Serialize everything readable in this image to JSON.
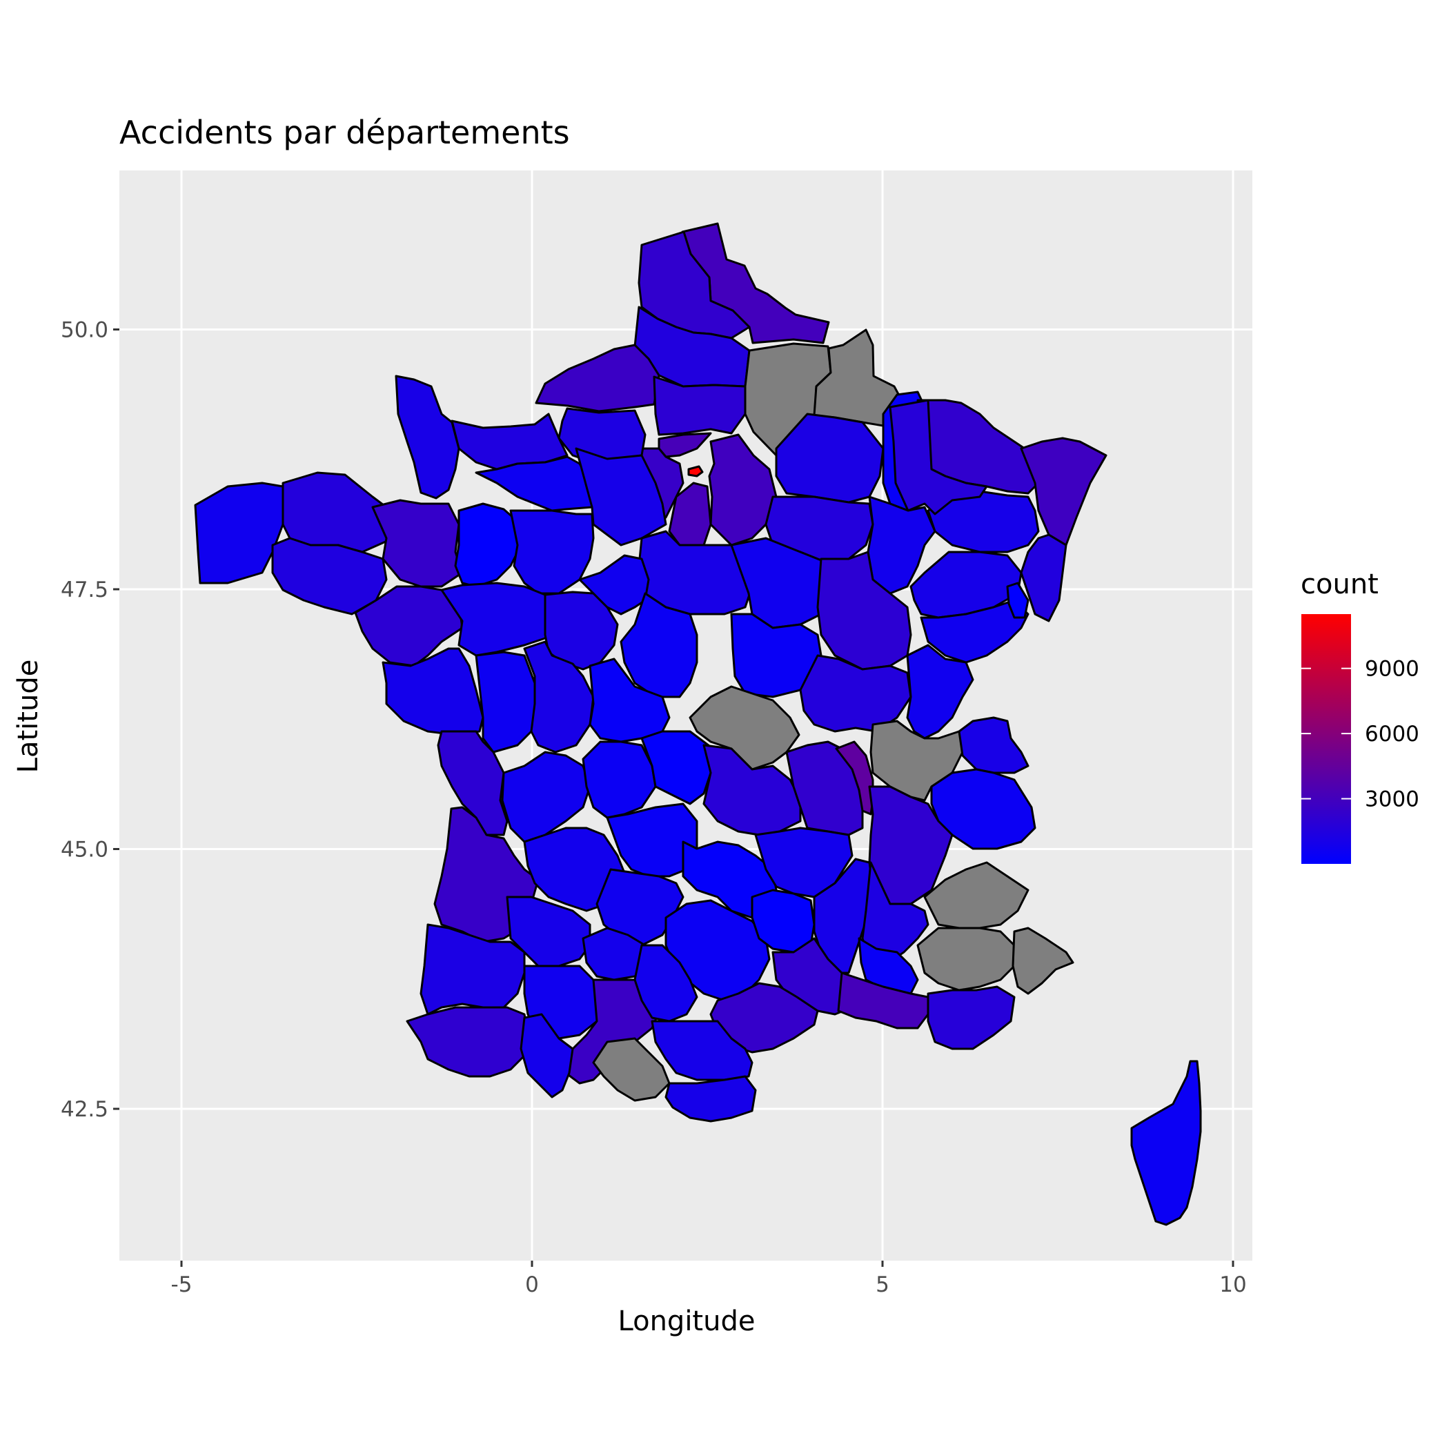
{
  "title": "Accidents par départements",
  "chart_data": {
    "type": "choropleth-map",
    "title": "Accidents par départements",
    "xlabel": "Longitude",
    "ylabel": "Latitude",
    "xlim": [
      -6.2,
      10.1
    ],
    "ylim": [
      41.1,
      51.65
    ],
    "x_ticks": [
      -5,
      0,
      5,
      10
    ],
    "x_tick_labels": [
      "-5",
      "0",
      "5",
      "10"
    ],
    "y_ticks": [
      42.5,
      45.0,
      47.5,
      50.0
    ],
    "y_tick_labels": [
      "42.5",
      "45.0",
      "47.5",
      "50.0"
    ],
    "grid": true,
    "background": "#ebebeb",
    "grid_color": "#ffffff",
    "border_color": "#000000",
    "na_color": "#7f7f7f",
    "legend": {
      "title": "count",
      "placement": "right",
      "low_color": "#0000ff",
      "high_color": "#ff0000",
      "range": [
        0,
        11500
      ],
      "breaks": [
        3000,
        6000,
        9000
      ],
      "break_labels": [
        "3000",
        "6000",
        "9000"
      ]
    },
    "regions": [
      {
        "name": "Nord",
        "value": 3000
      },
      {
        "name": "Pas-de-Calais",
        "value": 2200
      },
      {
        "name": "Somme",
        "value": 1500
      },
      {
        "name": "Aisne",
        "value": null
      },
      {
        "name": "Ardennes",
        "value": null
      },
      {
        "name": "Seine-Maritime",
        "value": 2600
      },
      {
        "name": "Oise",
        "value": 2000
      },
      {
        "name": "Val-d'Oise",
        "value": 3200
      },
      {
        "name": "Paris",
        "value": 11500
      },
      {
        "name": "Seine-et-Marne",
        "value": 2900
      },
      {
        "name": "Yvelines",
        "value": 2500
      },
      {
        "name": "Essonne",
        "value": 3100
      },
      {
        "name": "Marne",
        "value": 1200
      },
      {
        "name": "Meuse",
        "value": 300
      },
      {
        "name": "Moselle",
        "value": 2200
      },
      {
        "name": "Bas-Rhin",
        "value": 2800
      },
      {
        "name": "Haut-Rhin",
        "value": 1500
      },
      {
        "name": "Vosges",
        "value": 1000
      },
      {
        "name": "Meurthe-et-Moselle",
        "value": 1700
      },
      {
        "name": "Aube",
        "value": 1600
      },
      {
        "name": "Haute-Marne",
        "value": 800
      },
      {
        "name": "Calvados",
        "value": 1400
      },
      {
        "name": "Manche",
        "value": 1100
      },
      {
        "name": "Orne",
        "value": 600
      },
      {
        "name": "Eure",
        "value": 1300
      },
      {
        "name": "Finistère",
        "value": 700
      },
      {
        "name": "Côtes-d'Armor",
        "value": 1600
      },
      {
        "name": "Ille-et-Vilaine",
        "value": 2400
      },
      {
        "name": "Morbihan",
        "value": 1400
      },
      {
        "name": "Loire-Atlantique",
        "value": 2000
      },
      {
        "name": "Mayenne",
        "value": 100
      },
      {
        "name": "Sarthe",
        "value": 800
      },
      {
        "name": "Eure-et-Loir",
        "value": 1000
      },
      {
        "name": "Loiret",
        "value": 1100
      },
      {
        "name": "Yonne",
        "value": 700
      },
      {
        "name": "Côte-d'Or",
        "value": 2000
      },
      {
        "name": "Haute-Saône",
        "value": 1000
      },
      {
        "name": "Doubs",
        "value": 700
      },
      {
        "name": "Territoire de Belfort",
        "value": 50
      },
      {
        "name": "Maine-et-Loire",
        "value": 900
      },
      {
        "name": "Indre-et-Loire",
        "value": 1200
      },
      {
        "name": "Loir-et-Cher",
        "value": 700
      },
      {
        "name": "Cher",
        "value": 500
      },
      {
        "name": "Nièvre",
        "value": 400
      },
      {
        "name": "Saône-et-Loire",
        "value": 1600
      },
      {
        "name": "Jura",
        "value": 700
      },
      {
        "name": "Vendée",
        "value": 900
      },
      {
        "name": "Deux-Sèvres",
        "value": 600
      },
      {
        "name": "Vienne",
        "value": 1100
      },
      {
        "name": "Indre",
        "value": 300
      },
      {
        "name": "Allier",
        "value": null
      },
      {
        "name": "Ain",
        "value": null
      },
      {
        "name": "Haute-Savoie",
        "value": 1100
      },
      {
        "name": "Savoie",
        "value": 500
      },
      {
        "name": "Charente-Maritime",
        "value": 2000
      },
      {
        "name": "Charente",
        "value": 700
      },
      {
        "name": "Haute-Vienne",
        "value": 500
      },
      {
        "name": "Creuse",
        "value": 150
      },
      {
        "name": "Puy-de-Dôme",
        "value": 1800
      },
      {
        "name": "Loire",
        "value": 2200
      },
      {
        "name": "Rhône",
        "value": 4300
      },
      {
        "name": "Isère",
        "value": 2100
      },
      {
        "name": "Gironde",
        "value": 2500
      },
      {
        "name": "Dordogne",
        "value": 800
      },
      {
        "name": "Corrèze",
        "value": 400
      },
      {
        "name": "Cantal",
        "value": 200
      },
      {
        "name": "Haute-Loire",
        "value": 800
      },
      {
        "name": "Ardèche",
        "value": 1000
      },
      {
        "name": "Drôme",
        "value": 1300
      },
      {
        "name": "Hautes-Alpes",
        "value": null
      },
      {
        "name": "Alpes-de-Haute-Provence",
        "value": null
      },
      {
        "name": "Alpes-Maritimes",
        "value": null
      },
      {
        "name": "Landes",
        "value": 1200
      },
      {
        "name": "Lot-et-Garonne",
        "value": 1000
      },
      {
        "name": "Lot",
        "value": 700
      },
      {
        "name": "Aveyron",
        "value": 500
      },
      {
        "name": "Lozère",
        "value": 100
      },
      {
        "name": "Gard",
        "value": 2200
      },
      {
        "name": "Vaucluse",
        "value": 400
      },
      {
        "name": "Bouches-du-Rhône",
        "value": 3100
      },
      {
        "name": "Var",
        "value": 1700
      },
      {
        "name": "Pyrénées-Atlantiques",
        "value": 2100
      },
      {
        "name": "Gers",
        "value": 700
      },
      {
        "name": "Tarn-et-Garonne",
        "value": 900
      },
      {
        "name": "Haute-Garonne",
        "value": 2600
      },
      {
        "name": "Tarn",
        "value": 800
      },
      {
        "name": "Hérault",
        "value": 2400
      },
      {
        "name": "Hautes-Pyrénées",
        "value": 900
      },
      {
        "name": "Ariège",
        "value": null
      },
      {
        "name": "Aude",
        "value": 1000
      },
      {
        "name": "Pyrénées-Orientales",
        "value": 1000
      },
      {
        "name": "Corse",
        "value": 500
      }
    ]
  }
}
